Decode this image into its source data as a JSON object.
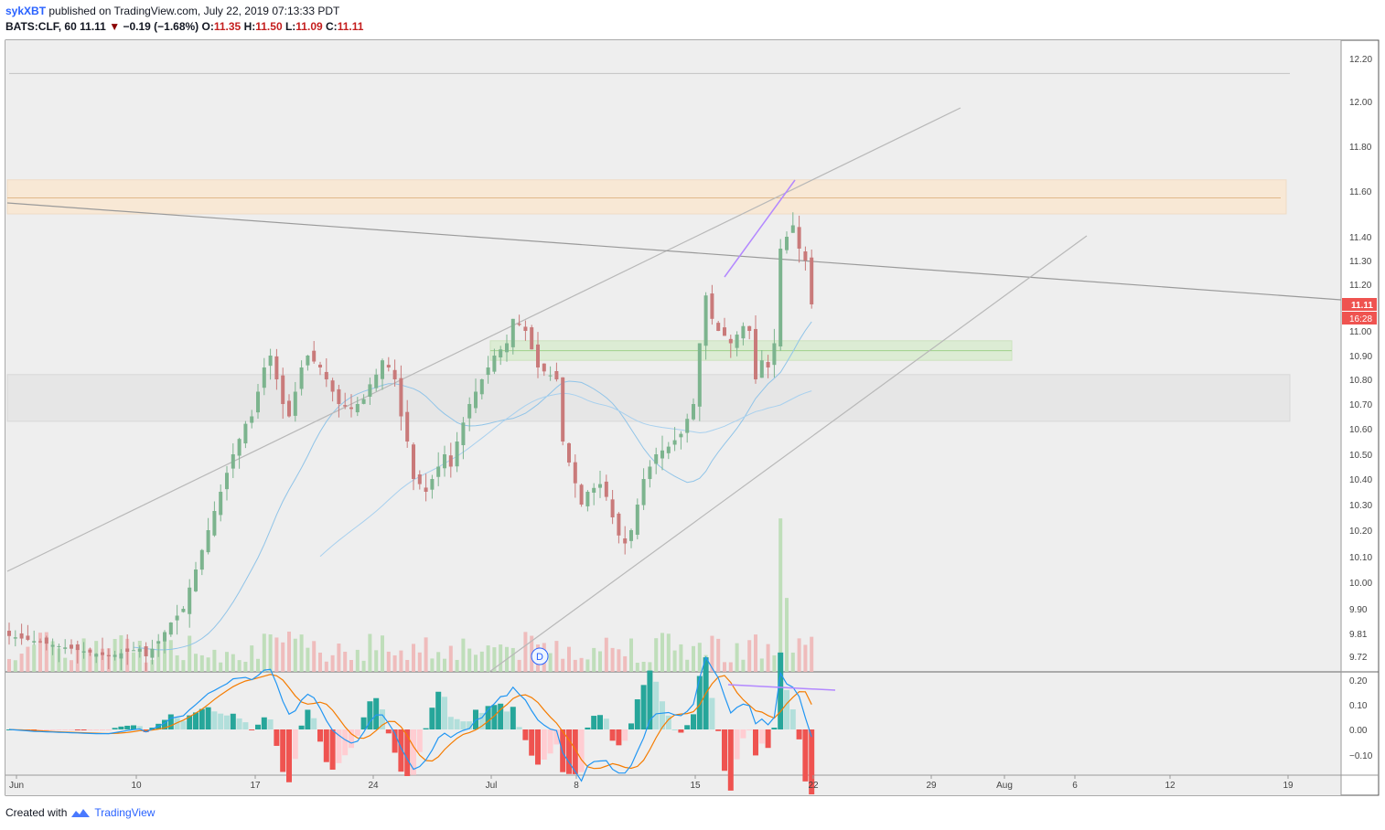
{
  "header": {
    "author": "sykXBT",
    "published_text": "published on TradingView.com, July 22, 2019 07:13:33 PDT",
    "symbol": "BATS:CLF, 60",
    "last": "11.11",
    "change": "−0.19 (−1.68%)",
    "open_label": "O:",
    "open": "11.35",
    "high_label": "H:",
    "high": "11.50",
    "low_label": "L:",
    "low": "11.09",
    "close_label": "C:",
    "close": "11.11"
  },
  "footer": {
    "created_with": "Created with",
    "brand": "TradingView"
  },
  "colors": {
    "up": "#26a69a",
    "down": "#ef5350",
    "bg": "#eeeeee",
    "ma_fast": "#90c4e8",
    "ma_slow": "#a8d0ee",
    "macd": "#2196f3",
    "signal": "#f57c00",
    "divergence": "#b388ff",
    "resistance_zone": "#fbe7cf",
    "support_zone": "#d9ecd0",
    "grey_zone": "#e6e6e6",
    "price_badge": "#ef5350"
  },
  "chart_data": {
    "type": "candlestick",
    "symbol": "BATS:CLF",
    "interval": "60",
    "price_axis_ticks": [
      "12.20",
      "12.00",
      "11.80",
      "11.60",
      "11.40",
      "11.30",
      "11.20",
      "11.11",
      "11.00",
      "10.90",
      "10.80",
      "10.70",
      "10.60",
      "10.50",
      "10.40",
      "10.30",
      "10.20",
      "10.10",
      "10.00",
      "9.90",
      "9.81",
      "9.72"
    ],
    "price_axis_values": [
      12.2,
      12.0,
      11.8,
      11.6,
      11.4,
      11.3,
      11.2,
      11.11,
      11.0,
      10.9,
      10.8,
      10.7,
      10.6,
      10.5,
      10.4,
      10.3,
      10.2,
      10.1,
      10.0,
      9.9,
      9.81,
      9.72
    ],
    "last_price": "11.11",
    "countdown": "16:28",
    "time_axis_labels": [
      "Jun",
      "10",
      "17",
      "24",
      "Jul",
      "8",
      "15",
      "22",
      "29",
      "Aug",
      "6",
      "12",
      "19"
    ],
    "macd_axis_ticks": [
      "0.20",
      "0.10",
      "0.00",
      "−0.10"
    ],
    "macd_axis_values": [
      0.2,
      0.1,
      0.0,
      -0.1
    ],
    "day_marker": "D",
    "close_path": [
      [
        0,
        9.8
      ],
      [
        10,
        9.75
      ],
      [
        16,
        9.72
      ],
      [
        21,
        9.75
      ],
      [
        22,
        9.72
      ],
      [
        24,
        9.78
      ],
      [
        26,
        9.85
      ],
      [
        28,
        9.9
      ],
      [
        29,
        9.98
      ],
      [
        30,
        10.05
      ],
      [
        32,
        10.2
      ],
      [
        34,
        10.35
      ],
      [
        36,
        10.5
      ],
      [
        38,
        10.62
      ],
      [
        39,
        10.65
      ],
      [
        40,
        10.75
      ],
      [
        41,
        10.85
      ],
      [
        42,
        10.9
      ],
      [
        43,
        10.8
      ],
      [
        44,
        10.7
      ],
      [
        45,
        10.65
      ],
      [
        46,
        10.75
      ],
      [
        47,
        10.85
      ],
      [
        48,
        10.9
      ],
      [
        50,
        10.85
      ],
      [
        51,
        10.8
      ],
      [
        52,
        10.75
      ],
      [
        53,
        10.7
      ],
      [
        55,
        10.68
      ],
      [
        57,
        10.72
      ],
      [
        58,
        10.78
      ],
      [
        59,
        10.82
      ],
      [
        60,
        10.88
      ],
      [
        61,
        10.85
      ],
      [
        62,
        10.8
      ],
      [
        63,
        10.65
      ],
      [
        64,
        10.55
      ],
      [
        65,
        10.4
      ],
      [
        66,
        10.38
      ],
      [
        67,
        10.35
      ],
      [
        68,
        10.4
      ],
      [
        69,
        10.45
      ],
      [
        70,
        10.5
      ],
      [
        71,
        10.45
      ],
      [
        72,
        10.55
      ],
      [
        74,
        10.7
      ],
      [
        76,
        10.8
      ],
      [
        78,
        10.9
      ],
      [
        80,
        10.95
      ],
      [
        81,
        11.05
      ],
      [
        83,
        11.0
      ],
      [
        85,
        10.85
      ],
      [
        88,
        10.8
      ],
      [
        89,
        10.55
      ],
      [
        92,
        10.3
      ],
      [
        93,
        10.35
      ],
      [
        95,
        10.38
      ],
      [
        96,
        10.33
      ],
      [
        97,
        10.25
      ],
      [
        98,
        10.18
      ],
      [
        99,
        10.15
      ],
      [
        100,
        10.2
      ],
      [
        101,
        10.3
      ],
      [
        102,
        10.4
      ],
      [
        104,
        10.5
      ],
      [
        106,
        10.53
      ],
      [
        108,
        10.58
      ],
      [
        110,
        10.7
      ],
      [
        111,
        10.95
      ],
      [
        112,
        11.15
      ],
      [
        113,
        11.05
      ],
      [
        114,
        11.0
      ],
      [
        115,
        10.98
      ],
      [
        116,
        10.95
      ],
      [
        118,
        11.02
      ],
      [
        119,
        11.0
      ],
      [
        120,
        10.8
      ],
      [
        121,
        10.88
      ],
      [
        122,
        10.85
      ],
      [
        123,
        10.95
      ],
      [
        124,
        11.35
      ],
      [
        125,
        11.4
      ],
      [
        126,
        11.45
      ],
      [
        127,
        11.35
      ],
      [
        128,
        11.3
      ],
      [
        129,
        11.11
      ]
    ]
  }
}
